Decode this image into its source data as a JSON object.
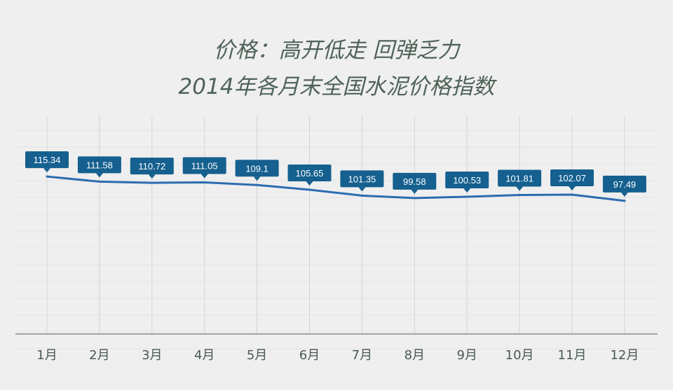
{
  "chart_data": {
    "type": "line",
    "title": "价格：高开低走 回弹乏力",
    "subtitle": "2014年各月末全国水泥价格指数",
    "xlabel": "",
    "ylabel": "",
    "categories": [
      "1月",
      "2月",
      "3月",
      "4月",
      "5月",
      "6月",
      "7月",
      "8月",
      "9月",
      "10月",
      "11月",
      "12月"
    ],
    "series": [
      {
        "values": [
          115.34,
          111.58,
          110.72,
          111.05,
          109.1,
          105.65,
          101.35,
          99.58,
          100.53,
          101.81,
          102.07,
          97.49
        ],
        "labels": [
          "115.34",
          "111.58",
          "110.72",
          "111.05",
          "109.1",
          "105.65",
          "101.35",
          "99.58",
          "100.53",
          "101.81",
          "102.07",
          "97.49"
        ]
      }
    ],
    "ylim": [
      0,
      160
    ],
    "grid": true,
    "legend": "none",
    "colors": {
      "line": "#2b6cb0",
      "label_bg": "#15608f",
      "label_text": "#ffffff",
      "title": "#4f6358",
      "axis_text": "#4a5a52",
      "grid": "#d4d4d4",
      "background": "#efefef"
    }
  }
}
